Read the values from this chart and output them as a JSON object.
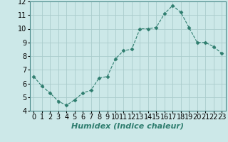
{
  "x": [
    0,
    1,
    2,
    3,
    4,
    5,
    6,
    7,
    8,
    9,
    10,
    11,
    12,
    13,
    14,
    15,
    16,
    17,
    18,
    19,
    20,
    21,
    22,
    23
  ],
  "y": [
    6.5,
    5.8,
    5.3,
    4.7,
    4.4,
    4.8,
    5.3,
    5.5,
    6.4,
    6.5,
    7.8,
    8.4,
    8.5,
    10.0,
    10.0,
    10.1,
    11.1,
    11.7,
    11.2,
    10.1,
    9.0,
    9.0,
    8.7,
    8.2
  ],
  "line_color": "#2e7d6e",
  "marker": "D",
  "marker_size": 2.5,
  "bg_color": "#cce8e8",
  "grid_color": "#aacccc",
  "xlabel": "Humidex (Indice chaleur)",
  "xlabel_fontsize": 8,
  "tick_fontsize": 7,
  "xlim": [
    -0.5,
    23.5
  ],
  "ylim": [
    4,
    12
  ],
  "yticks": [
    4,
    5,
    6,
    7,
    8,
    9,
    10,
    11,
    12
  ],
  "xtick_labels": [
    "0",
    "1",
    "2",
    "3",
    "4",
    "5",
    "6",
    "7",
    "8",
    "9",
    "10",
    "11",
    "12",
    "13",
    "14",
    "15",
    "16",
    "17",
    "18",
    "19",
    "20",
    "21",
    "22",
    "23"
  ]
}
